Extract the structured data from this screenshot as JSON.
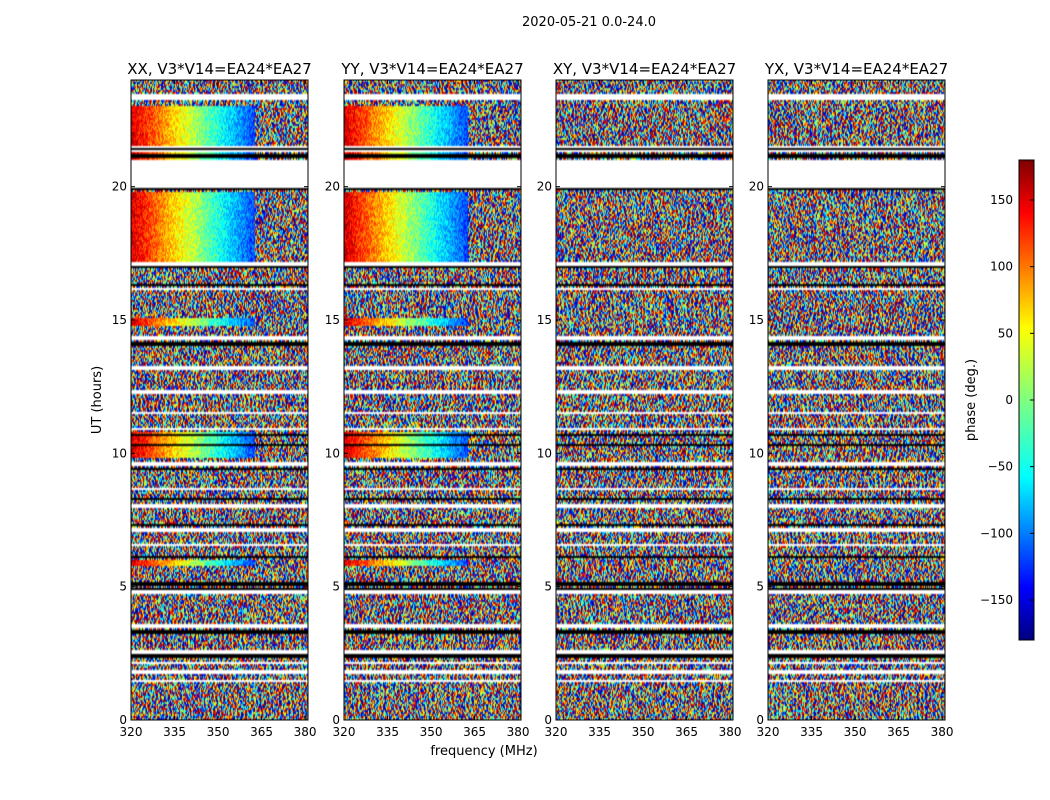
{
  "suptitle": "2020-05-21 0.0-24.0",
  "chart_data": {
    "type": "heatmap",
    "title": "2020-05-21 0.0-24.0",
    "xlabel": "frequency (MHz)",
    "ylabel": "UT (hours)",
    "xlim": [
      320,
      381
    ],
    "ylim": [
      0,
      24
    ],
    "xticks": [
      320,
      335,
      350,
      365,
      380
    ],
    "yticks": [
      0,
      5,
      10,
      15,
      20
    ],
    "colorbar": {
      "label": "phase (deg.)",
      "range": [
        -180,
        180
      ],
      "ticks": [
        150,
        100,
        50,
        0,
        -50,
        -100,
        -150
      ],
      "tick_labels": [
        "150",
        "100",
        "50",
        "0",
        "−50",
        "−100",
        "−150"
      ],
      "colormap": "jet"
    },
    "panels": [
      {
        "title": "XX, V3*V14=EA24*EA27",
        "coherent": true
      },
      {
        "title": "YY, V3*V14=EA24*EA27",
        "coherent": true
      },
      {
        "title": "XY, V3*V14=EA24*EA27",
        "coherent": false
      },
      {
        "title": "YX, V3*V14=EA24*EA27",
        "coherent": false
      }
    ],
    "coherent_intervals_hours": [
      [
        21.0,
        23.0
      ],
      [
        17.2,
        19.8
      ],
      [
        14.8,
        15.1
      ],
      [
        9.8,
        10.8
      ],
      [
        5.8,
        6.0
      ]
    ],
    "flagged_intervals_hours": [
      [
        23.25,
        23.5
      ],
      [
        21.3,
        21.5
      ],
      [
        20.2,
        21.0
      ],
      [
        19.85,
        20.15
      ],
      [
        17.05,
        17.2
      ],
      [
        16.1,
        16.2
      ],
      [
        14.25,
        14.4
      ],
      [
        13.15,
        13.25
      ],
      [
        12.25,
        12.35
      ],
      [
        11.45,
        11.55
      ],
      [
        10.85,
        10.95
      ],
      [
        9.5,
        9.65
      ],
      [
        8.6,
        8.7
      ],
      [
        7.95,
        8.1
      ],
      [
        7.05,
        7.2
      ],
      [
        6.55,
        6.6
      ],
      [
        4.75,
        4.85
      ],
      [
        3.45,
        3.6
      ],
      [
        2.45,
        2.6
      ],
      [
        2.1,
        2.2
      ],
      [
        1.75,
        1.85
      ],
      [
        1.45,
        1.5
      ]
    ],
    "black_lines_hours": [
      21.15,
      21.4,
      19.9,
      17.0,
      16.3,
      14.1,
      10.7,
      10.3,
      9.4,
      8.3,
      7.3,
      6.1,
      5.1,
      4.9,
      3.3,
      2.4
    ]
  }
}
